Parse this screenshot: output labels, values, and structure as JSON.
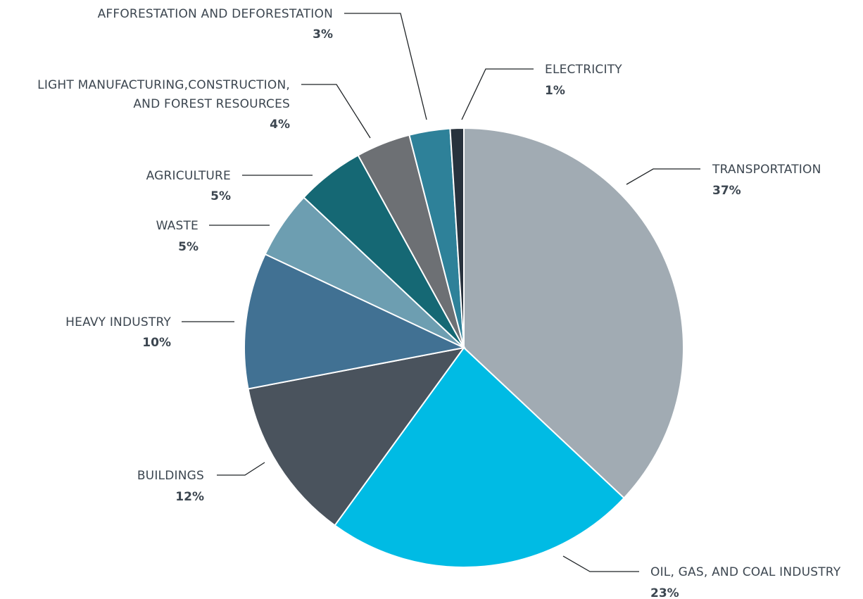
{
  "chart_data": {
    "type": "pie",
    "title": "",
    "slices": [
      {
        "label": "TRANSPORTATION",
        "value": 37,
        "value_text": "37%",
        "color": "#a1abb3"
      },
      {
        "label": "OIL, GAS, AND COAL INDUSTRY",
        "value": 23,
        "value_text": "23%",
        "color": "#00bbe4"
      },
      {
        "label": "BUILDINGS",
        "value": 12,
        "value_text": "12%",
        "color": "#4a535d"
      },
      {
        "label": "HEAVY INDUSTRY",
        "value": 10,
        "value_text": "10%",
        "color": "#417193"
      },
      {
        "label": "WASTE",
        "value": 5,
        "value_text": "5%",
        "color": "#6d9eb1"
      },
      {
        "label": "AGRICULTURE",
        "value": 5,
        "value_text": "5%",
        "color": "#156874"
      },
      {
        "label": "LIGHT MANUFACTURING,CONSTRUCTION, AND FOREST RESOURCES",
        "label_lines": [
          "LIGHT MANUFACTURING,CONSTRUCTION,",
          "AND FOREST RESOURCES"
        ],
        "value": 4,
        "value_text": "4%",
        "color": "#6d7074"
      },
      {
        "label": "AFFORESTATION AND DEFORESTATION",
        "value": 3,
        "value_text": "3%",
        "color": "#2e8199"
      },
      {
        "label": "ELECTRICITY",
        "value": 1,
        "value_text": "1%",
        "color": "#28323d"
      }
    ],
    "start": "12 o'clock",
    "direction": "clockwise",
    "legend": "none"
  }
}
